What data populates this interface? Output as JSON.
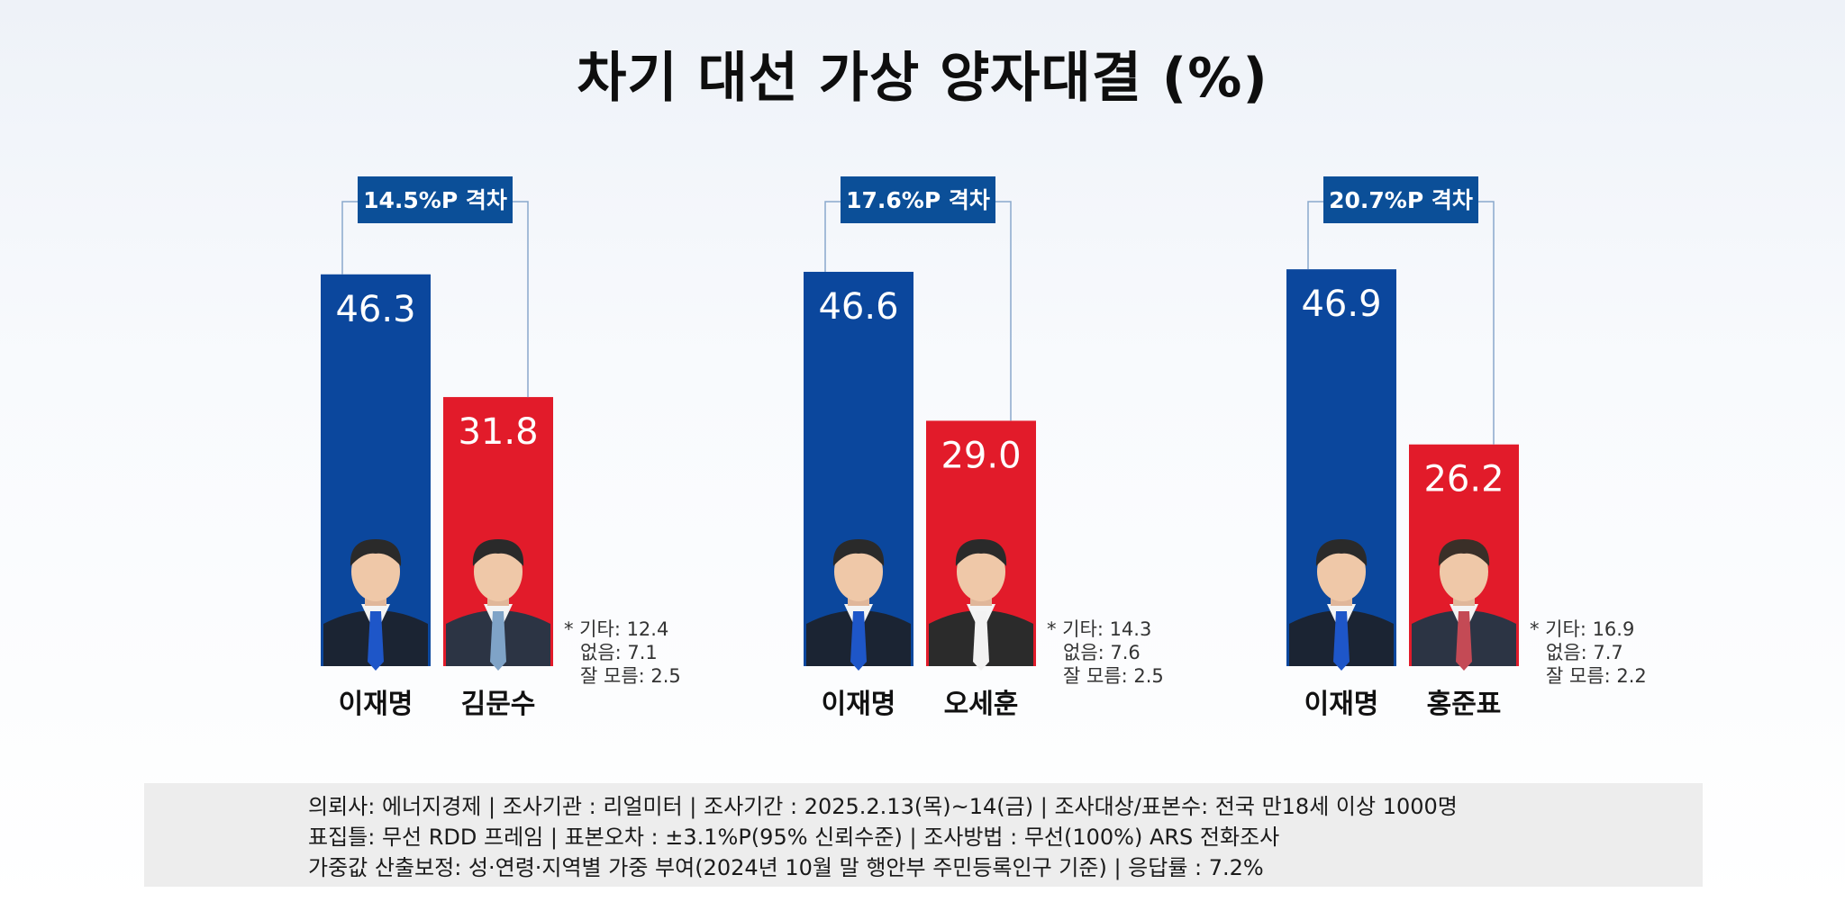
{
  "title": "차기 대선 가상 양자대결 (%)",
  "colors": {
    "democratic": "#0b479d",
    "ppp": "#e21b2a",
    "gap_box": "#0b4f98"
  },
  "chart_data": {
    "type": "bar",
    "title": "차기 대선 가상 양자대결 (%)",
    "groups": [
      {
        "gap_label": "14.5%P 격차",
        "candidates": [
          {
            "name": "이재명",
            "value": 46.3,
            "label": "46.3",
            "party": "democratic"
          },
          {
            "name": "김문수",
            "value": 31.8,
            "label": "31.8",
            "party": "ppp"
          }
        ],
        "others": [
          "* 기타: 12.4",
          "없음: 7.1",
          "잘 모름: 2.5"
        ]
      },
      {
        "gap_label": "17.6%P 격차",
        "candidates": [
          {
            "name": "이재명",
            "value": 46.6,
            "label": "46.6",
            "party": "democratic"
          },
          {
            "name": "오세훈",
            "value": 29.0,
            "label": "29.0",
            "party": "ppp"
          }
        ],
        "others": [
          "* 기타: 14.3",
          "없음: 7.6",
          "잘 모름: 2.5"
        ]
      },
      {
        "gap_label": "20.7%P 격차",
        "candidates": [
          {
            "name": "이재명",
            "value": 46.9,
            "label": "46.9",
            "party": "democratic"
          },
          {
            "name": "홍준표",
            "value": 26.2,
            "label": "26.2",
            "party": "ppp"
          }
        ],
        "others": [
          "* 기타: 16.9",
          "없음: 7.7",
          "잘 모름: 2.2"
        ]
      }
    ]
  },
  "footer": {
    "line1": "의뢰사: 에너지경제 | 조사기관 : 리얼미터  |  조사기간 : 2025.2.13(목)~14(금) | 조사대상/표본수: 전국 만18세 이상 1000명",
    "line2": "표집틀: 무선 RDD 프레임 | 표본오차 : ±3.1%P(95% 신뢰수준) | 조사방법 : 무선(100%) ARS 전화조사",
    "line3": "가중값 산출보정: 성·연령·지역별 가중 부여(2024년 10월 말 행안부 주민등록인구 기준) | 응답률 : 7.2%"
  }
}
